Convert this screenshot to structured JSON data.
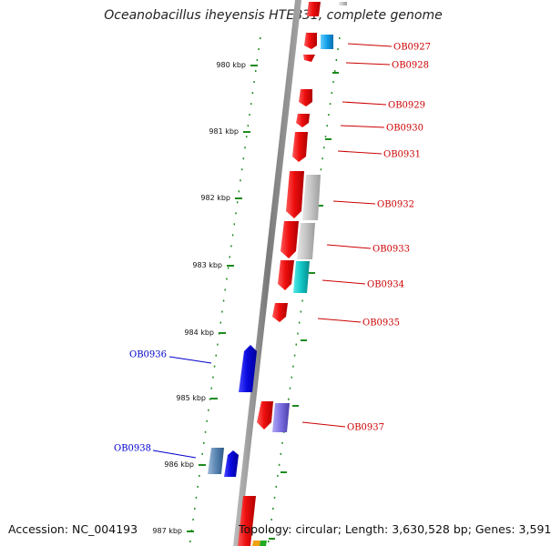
{
  "title": "Oceanobacillus iheyensis HTE831, complete genome",
  "accession": "Accession: NC_004193",
  "topology": "Topology: circular; Length: 3,630,528 bp; Genes: 3,591",
  "colors": {
    "backbone": "#8a8a8a",
    "tick": "#1f8a1f",
    "forward_label": "#cc0000",
    "reverse_label": "#0000cc"
  },
  "scale": {
    "ticks": [
      {
        "label": "980 kbp",
        "kbp": 980
      },
      {
        "label": "981 kbp",
        "kbp": 981
      },
      {
        "label": "982 kbp",
        "kbp": 982
      },
      {
        "label": "983 kbp",
        "kbp": 983
      },
      {
        "label": "984 kbp",
        "kbp": 984
      },
      {
        "label": "985 kbp",
        "kbp": 985
      },
      {
        "label": "986 kbp",
        "kbp": 986
      },
      {
        "label": "987 kbp",
        "kbp": 987
      }
    ]
  },
  "genes": [
    {
      "label": "OB0927",
      "strand": "+",
      "color": "#ee1111"
    },
    {
      "label": "OB0928",
      "strand": "+",
      "color": "#ee1111"
    },
    {
      "label": "OB0929",
      "strand": "+",
      "color": "#ee1111"
    },
    {
      "label": "OB0930",
      "strand": "+",
      "color": "#ee1111"
    },
    {
      "label": "OB0931",
      "strand": "+",
      "color": "#ee1111"
    },
    {
      "label": "OB0932",
      "strand": "+",
      "color": "#ee1111"
    },
    {
      "label": "OB0933",
      "strand": "+",
      "color": "#ee1111"
    },
    {
      "label": "OB0934",
      "strand": "+",
      "color": "#ee1111"
    },
    {
      "label": "OB0935",
      "strand": "+",
      "color": "#ee1111"
    },
    {
      "label": "OB0936",
      "strand": "-",
      "color": "#1010dd"
    },
    {
      "label": "OB0937",
      "strand": "+",
      "color": "#ee1111"
    },
    {
      "label": "OB0938",
      "strand": "-",
      "color": "#1010dd"
    }
  ]
}
